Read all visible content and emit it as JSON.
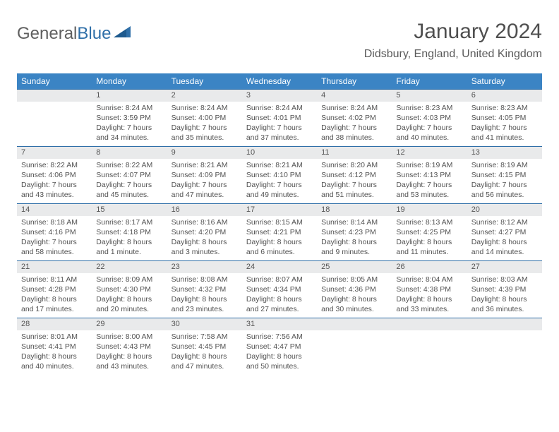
{
  "logo": {
    "text1": "General",
    "text2": "Blue"
  },
  "title": "January 2024",
  "location": "Didsbury, England, United Kingdom",
  "colors": {
    "header_bg": "#3b84c4",
    "header_text": "#ffffff",
    "daynum_bg": "#e9eaeb",
    "border": "#2f6fa8",
    "text": "#525252",
    "title_text": "#4f4f4f",
    "logo_accent": "#2f6fa8"
  },
  "columns": [
    "Sunday",
    "Monday",
    "Tuesday",
    "Wednesday",
    "Thursday",
    "Friday",
    "Saturday"
  ],
  "weeks": [
    [
      {
        "num": "",
        "lines": []
      },
      {
        "num": "1",
        "lines": [
          "Sunrise: 8:24 AM",
          "Sunset: 3:59 PM",
          "Daylight: 7 hours",
          "and 34 minutes."
        ]
      },
      {
        "num": "2",
        "lines": [
          "Sunrise: 8:24 AM",
          "Sunset: 4:00 PM",
          "Daylight: 7 hours",
          "and 35 minutes."
        ]
      },
      {
        "num": "3",
        "lines": [
          "Sunrise: 8:24 AM",
          "Sunset: 4:01 PM",
          "Daylight: 7 hours",
          "and 37 minutes."
        ]
      },
      {
        "num": "4",
        "lines": [
          "Sunrise: 8:24 AM",
          "Sunset: 4:02 PM",
          "Daylight: 7 hours",
          "and 38 minutes."
        ]
      },
      {
        "num": "5",
        "lines": [
          "Sunrise: 8:23 AM",
          "Sunset: 4:03 PM",
          "Daylight: 7 hours",
          "and 40 minutes."
        ]
      },
      {
        "num": "6",
        "lines": [
          "Sunrise: 8:23 AM",
          "Sunset: 4:05 PM",
          "Daylight: 7 hours",
          "and 41 minutes."
        ]
      }
    ],
    [
      {
        "num": "7",
        "lines": [
          "Sunrise: 8:22 AM",
          "Sunset: 4:06 PM",
          "Daylight: 7 hours",
          "and 43 minutes."
        ]
      },
      {
        "num": "8",
        "lines": [
          "Sunrise: 8:22 AM",
          "Sunset: 4:07 PM",
          "Daylight: 7 hours",
          "and 45 minutes."
        ]
      },
      {
        "num": "9",
        "lines": [
          "Sunrise: 8:21 AM",
          "Sunset: 4:09 PM",
          "Daylight: 7 hours",
          "and 47 minutes."
        ]
      },
      {
        "num": "10",
        "lines": [
          "Sunrise: 8:21 AM",
          "Sunset: 4:10 PM",
          "Daylight: 7 hours",
          "and 49 minutes."
        ]
      },
      {
        "num": "11",
        "lines": [
          "Sunrise: 8:20 AM",
          "Sunset: 4:12 PM",
          "Daylight: 7 hours",
          "and 51 minutes."
        ]
      },
      {
        "num": "12",
        "lines": [
          "Sunrise: 8:19 AM",
          "Sunset: 4:13 PM",
          "Daylight: 7 hours",
          "and 53 minutes."
        ]
      },
      {
        "num": "13",
        "lines": [
          "Sunrise: 8:19 AM",
          "Sunset: 4:15 PM",
          "Daylight: 7 hours",
          "and 56 minutes."
        ]
      }
    ],
    [
      {
        "num": "14",
        "lines": [
          "Sunrise: 8:18 AM",
          "Sunset: 4:16 PM",
          "Daylight: 7 hours",
          "and 58 minutes."
        ]
      },
      {
        "num": "15",
        "lines": [
          "Sunrise: 8:17 AM",
          "Sunset: 4:18 PM",
          "Daylight: 8 hours",
          "and 1 minute."
        ]
      },
      {
        "num": "16",
        "lines": [
          "Sunrise: 8:16 AM",
          "Sunset: 4:20 PM",
          "Daylight: 8 hours",
          "and 3 minutes."
        ]
      },
      {
        "num": "17",
        "lines": [
          "Sunrise: 8:15 AM",
          "Sunset: 4:21 PM",
          "Daylight: 8 hours",
          "and 6 minutes."
        ]
      },
      {
        "num": "18",
        "lines": [
          "Sunrise: 8:14 AM",
          "Sunset: 4:23 PM",
          "Daylight: 8 hours",
          "and 9 minutes."
        ]
      },
      {
        "num": "19",
        "lines": [
          "Sunrise: 8:13 AM",
          "Sunset: 4:25 PM",
          "Daylight: 8 hours",
          "and 11 minutes."
        ]
      },
      {
        "num": "20",
        "lines": [
          "Sunrise: 8:12 AM",
          "Sunset: 4:27 PM",
          "Daylight: 8 hours",
          "and 14 minutes."
        ]
      }
    ],
    [
      {
        "num": "21",
        "lines": [
          "Sunrise: 8:11 AM",
          "Sunset: 4:28 PM",
          "Daylight: 8 hours",
          "and 17 minutes."
        ]
      },
      {
        "num": "22",
        "lines": [
          "Sunrise: 8:09 AM",
          "Sunset: 4:30 PM",
          "Daylight: 8 hours",
          "and 20 minutes."
        ]
      },
      {
        "num": "23",
        "lines": [
          "Sunrise: 8:08 AM",
          "Sunset: 4:32 PM",
          "Daylight: 8 hours",
          "and 23 minutes."
        ]
      },
      {
        "num": "24",
        "lines": [
          "Sunrise: 8:07 AM",
          "Sunset: 4:34 PM",
          "Daylight: 8 hours",
          "and 27 minutes."
        ]
      },
      {
        "num": "25",
        "lines": [
          "Sunrise: 8:05 AM",
          "Sunset: 4:36 PM",
          "Daylight: 8 hours",
          "and 30 minutes."
        ]
      },
      {
        "num": "26",
        "lines": [
          "Sunrise: 8:04 AM",
          "Sunset: 4:38 PM",
          "Daylight: 8 hours",
          "and 33 minutes."
        ]
      },
      {
        "num": "27",
        "lines": [
          "Sunrise: 8:03 AM",
          "Sunset: 4:39 PM",
          "Daylight: 8 hours",
          "and 36 minutes."
        ]
      }
    ],
    [
      {
        "num": "28",
        "lines": [
          "Sunrise: 8:01 AM",
          "Sunset: 4:41 PM",
          "Daylight: 8 hours",
          "and 40 minutes."
        ]
      },
      {
        "num": "29",
        "lines": [
          "Sunrise: 8:00 AM",
          "Sunset: 4:43 PM",
          "Daylight: 8 hours",
          "and 43 minutes."
        ]
      },
      {
        "num": "30",
        "lines": [
          "Sunrise: 7:58 AM",
          "Sunset: 4:45 PM",
          "Daylight: 8 hours",
          "and 47 minutes."
        ]
      },
      {
        "num": "31",
        "lines": [
          "Sunrise: 7:56 AM",
          "Sunset: 4:47 PM",
          "Daylight: 8 hours",
          "and 50 minutes."
        ]
      },
      {
        "num": "",
        "lines": []
      },
      {
        "num": "",
        "lines": []
      },
      {
        "num": "",
        "lines": []
      }
    ]
  ]
}
